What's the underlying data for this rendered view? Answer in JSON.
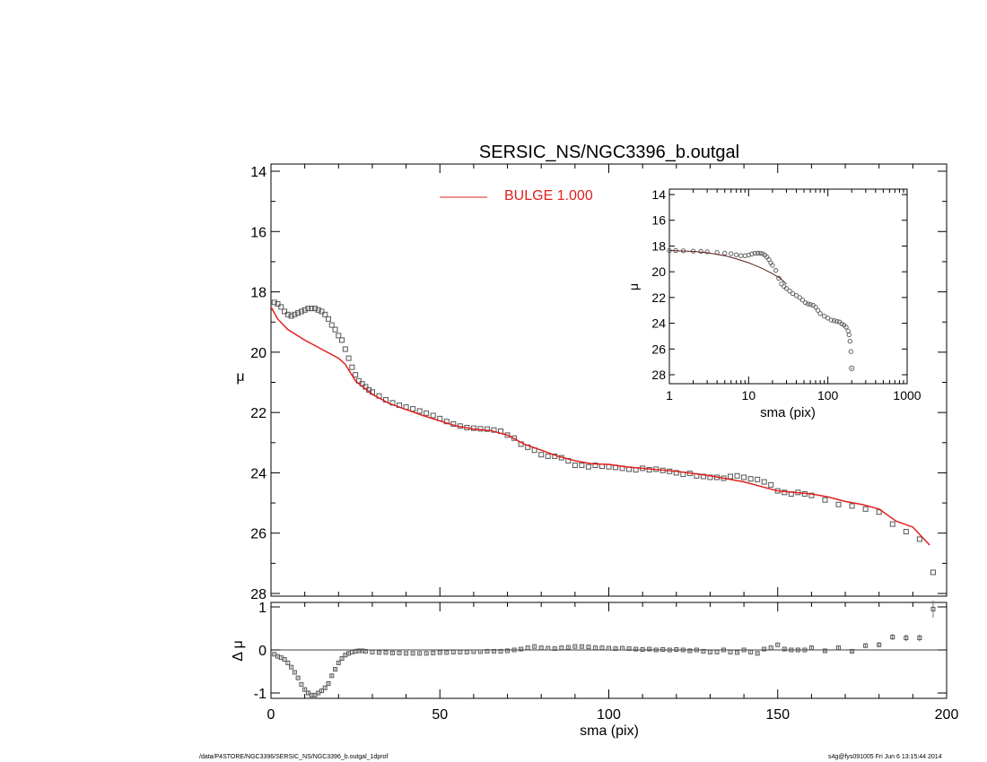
{
  "colors": {
    "model": "#e0201c",
    "points": "#555555",
    "axis": "#000000"
  },
  "footer": {
    "path": "/data/P4STORE/NGC3396/SERSIC_NS/NGC3396_b.outgal_1dprof",
    "stamp": "s4g@fys091005  Fri Jun  6 13:15:44 2014"
  },
  "chart_data": [
    {
      "id": "main",
      "type": "scatter",
      "title": "SERSIC_NS/NGC3396_b.outgal",
      "xlabel": "",
      "ylabel": "μ",
      "xlim": [
        0,
        200
      ],
      "ylim": [
        28,
        14
      ],
      "y_inverted": true,
      "yticks": [
        14,
        16,
        18,
        20,
        22,
        24,
        26,
        28
      ],
      "legend": {
        "placement": "top-center",
        "entries": [
          {
            "label": "BULGE  1.000",
            "color": "#e0201c"
          }
        ]
      },
      "series": [
        {
          "name": "data",
          "style": "open-square",
          "x": [
            1,
            2,
            3,
            4,
            5,
            6,
            7,
            8,
            9,
            10,
            11,
            12,
            13,
            14,
            15,
            16,
            17,
            18,
            19,
            20,
            21,
            22,
            23,
            24,
            25,
            26,
            27,
            28,
            29,
            30,
            32,
            34,
            36,
            38,
            40,
            42,
            44,
            46,
            48,
            50,
            52,
            54,
            56,
            58,
            60,
            62,
            64,
            66,
            68,
            70,
            72,
            74,
            76,
            78,
            80,
            82,
            84,
            86,
            88,
            90,
            92,
            94,
            96,
            98,
            100,
            102,
            104,
            106,
            108,
            110,
            112,
            114,
            116,
            118,
            120,
            122,
            124,
            126,
            128,
            130,
            132,
            134,
            136,
            138,
            140,
            142,
            144,
            146,
            148,
            150,
            152,
            154,
            156,
            158,
            160,
            164,
            168,
            172,
            176,
            180,
            184,
            188,
            192,
            196
          ],
          "y": [
            18.35,
            18.4,
            18.5,
            18.65,
            18.75,
            18.8,
            18.75,
            18.7,
            18.65,
            18.6,
            18.55,
            18.55,
            18.55,
            18.6,
            18.65,
            18.75,
            18.9,
            19.1,
            19.25,
            19.45,
            19.6,
            19.9,
            20.2,
            20.5,
            20.75,
            20.95,
            21.05,
            21.15,
            21.25,
            21.32,
            21.45,
            21.58,
            21.68,
            21.76,
            21.82,
            21.88,
            21.95,
            22.02,
            22.1,
            22.2,
            22.3,
            22.38,
            22.45,
            22.5,
            22.52,
            22.54,
            22.55,
            22.58,
            22.62,
            22.75,
            22.85,
            23.05,
            23.15,
            23.25,
            23.4,
            23.45,
            23.45,
            23.5,
            23.6,
            23.75,
            23.75,
            23.8,
            23.75,
            23.78,
            23.8,
            23.82,
            23.85,
            23.88,
            23.9,
            23.85,
            23.9,
            23.88,
            23.92,
            23.95,
            24.0,
            24.05,
            24.02,
            24.1,
            24.12,
            24.15,
            24.15,
            24.18,
            24.12,
            24.1,
            24.15,
            24.2,
            24.22,
            24.3,
            24.4,
            24.6,
            24.65,
            24.7,
            24.65,
            24.7,
            24.75,
            24.9,
            25.05,
            25.1,
            25.2,
            25.3,
            25.7,
            25.95,
            26.2,
            27.3
          ]
        },
        {
          "name": "BULGE  1.000",
          "style": "line",
          "x": [
            0,
            2,
            5,
            10,
            15,
            20,
            22,
            25,
            30,
            35,
            40,
            45,
            50,
            55,
            60,
            65,
            70,
            75,
            80,
            85,
            90,
            95,
            100,
            105,
            110,
            115,
            120,
            125,
            130,
            135,
            140,
            145,
            150,
            155,
            160,
            165,
            170,
            175,
            180,
            185,
            190,
            195
          ],
          "y": [
            18.5,
            18.9,
            19.25,
            19.6,
            19.9,
            20.2,
            20.4,
            20.95,
            21.4,
            21.7,
            21.9,
            22.1,
            22.28,
            22.45,
            22.55,
            22.6,
            22.75,
            23.05,
            23.25,
            23.45,
            23.6,
            23.7,
            23.72,
            23.8,
            23.85,
            23.9,
            23.95,
            24.02,
            24.1,
            24.2,
            24.3,
            24.45,
            24.6,
            24.65,
            24.7,
            24.8,
            24.95,
            25.05,
            25.2,
            25.6,
            25.8,
            26.4
          ]
        }
      ]
    },
    {
      "id": "inset",
      "type": "scatter",
      "title": "",
      "xlabel": "sma (pix)",
      "ylabel": "μ",
      "xscale": "log",
      "xlim": [
        1,
        1000
      ],
      "xticks": [
        1,
        10,
        100,
        1000
      ],
      "ylim": [
        28,
        14
      ],
      "y_inverted": true,
      "yticks": [
        14,
        16,
        18,
        20,
        22,
        24,
        26,
        28
      ],
      "series": [
        {
          "name": "data",
          "style": "open-circle",
          "x": [
            1,
            1.2,
            1.5,
            2,
            2.5,
            3,
            4,
            5,
            6,
            7,
            8,
            9,
            10,
            11,
            12,
            13,
            14,
            15,
            16,
            17,
            18,
            19,
            20,
            22,
            24,
            26,
            28,
            30,
            33,
            36,
            40,
            44,
            48,
            52,
            56,
            60,
            65,
            70,
            75,
            80,
            90,
            100,
            110,
            120,
            130,
            140,
            150,
            160,
            170,
            180,
            185,
            190,
            195
          ],
          "y": [
            18.35,
            18.35,
            18.37,
            18.4,
            18.42,
            18.45,
            18.5,
            18.55,
            18.6,
            18.68,
            18.75,
            18.75,
            18.7,
            18.62,
            18.57,
            18.55,
            18.56,
            18.6,
            18.7,
            18.85,
            19.05,
            19.3,
            19.5,
            19.9,
            20.5,
            20.95,
            21.15,
            21.3,
            21.5,
            21.7,
            21.85,
            22.0,
            22.2,
            22.4,
            22.5,
            22.55,
            22.6,
            22.75,
            23.0,
            23.25,
            23.45,
            23.6,
            23.75,
            23.8,
            23.85,
            23.9,
            24.05,
            24.15,
            24.3,
            24.6,
            24.9,
            25.4,
            26.2
          ]
        },
        {
          "name": "model",
          "style": "line",
          "x": [
            1,
            2,
            3,
            5,
            7,
            10,
            15,
            20,
            25,
            30
          ],
          "y": [
            18.35,
            18.42,
            18.52,
            18.75,
            19.0,
            19.3,
            19.75,
            20.15,
            20.5,
            20.95
          ]
        },
        {
          "name": "outlier",
          "style": "circle-dot",
          "x": [
            200
          ],
          "y": [
            27.5
          ]
        }
      ]
    },
    {
      "id": "residual",
      "type": "scatter",
      "title": "",
      "xlabel": "sma (pix)",
      "ylabel": "Δ μ",
      "xlim": [
        0,
        200
      ],
      "xticks": [
        0,
        50,
        100,
        150,
        200
      ],
      "ylim": [
        -1,
        1
      ],
      "yticks": [
        -1,
        0,
        1
      ],
      "zero_line": true,
      "series": [
        {
          "name": "residual",
          "style": "open-square-errorbar",
          "x": [
            1,
            2,
            3,
            4,
            5,
            6,
            7,
            8,
            9,
            10,
            11,
            12,
            13,
            14,
            15,
            16,
            17,
            18,
            19,
            20,
            21,
            22,
            23,
            24,
            25,
            26,
            27,
            28,
            30,
            32,
            34,
            36,
            38,
            40,
            42,
            44,
            46,
            48,
            50,
            52,
            54,
            56,
            58,
            60,
            62,
            64,
            66,
            68,
            70,
            72,
            74,
            76,
            78,
            80,
            82,
            84,
            86,
            88,
            90,
            92,
            94,
            96,
            98,
            100,
            102,
            104,
            106,
            108,
            110,
            112,
            114,
            116,
            118,
            120,
            122,
            124,
            126,
            128,
            130,
            132,
            134,
            136,
            138,
            140,
            142,
            144,
            146,
            148,
            150,
            152,
            154,
            156,
            158,
            160,
            164,
            168,
            172,
            176,
            180,
            184,
            188,
            192,
            196
          ],
          "y": [
            -0.1,
            -0.15,
            -0.18,
            -0.22,
            -0.3,
            -0.4,
            -0.52,
            -0.65,
            -0.8,
            -0.92,
            -1.0,
            -1.05,
            -1.05,
            -1.0,
            -0.95,
            -0.88,
            -0.78,
            -0.6,
            -0.45,
            -0.3,
            -0.2,
            -0.12,
            -0.08,
            -0.05,
            -0.03,
            -0.02,
            -0.02,
            -0.03,
            -0.05,
            -0.06,
            -0.06,
            -0.07,
            -0.07,
            -0.08,
            -0.08,
            -0.08,
            -0.08,
            -0.07,
            -0.06,
            -0.06,
            -0.05,
            -0.05,
            -0.05,
            -0.04,
            -0.04,
            -0.03,
            -0.03,
            -0.03,
            -0.02,
            0.0,
            0.02,
            0.05,
            0.08,
            0.05,
            0.04,
            0.03,
            0.05,
            0.06,
            0.08,
            0.08,
            0.07,
            0.05,
            0.05,
            0.04,
            0.03,
            0.04,
            0.03,
            0.02,
            0.01,
            0.02,
            0.0,
            0.01,
            0.0,
            0.01,
            0.0,
            -0.02,
            0.0,
            -0.03,
            -0.05,
            -0.05,
            0.0,
            -0.05,
            -0.06,
            0.0,
            -0.05,
            -0.08,
            0.02,
            0.05,
            0.12,
            0.02,
            0.0,
            0.0,
            0.0,
            0.05,
            -0.02,
            0.05,
            -0.03,
            0.1,
            0.12,
            0.3,
            0.28,
            0.28,
            0.95
          ],
          "err": [
            0.02,
            0.02,
            0.02,
            0.02,
            0.02,
            0.02,
            0.02,
            0.02,
            0.02,
            0.03,
            0.03,
            0.03,
            0.03,
            0.03,
            0.03,
            0.03,
            0.03,
            0.03,
            0.03,
            0.03,
            0.03,
            0.03,
            0.03,
            0.02,
            0.02,
            0.02,
            0.02,
            0.02,
            0.02,
            0.02,
            0.02,
            0.02,
            0.02,
            0.02,
            0.02,
            0.02,
            0.02,
            0.02,
            0.02,
            0.02,
            0.02,
            0.02,
            0.02,
            0.02,
            0.02,
            0.02,
            0.02,
            0.02,
            0.02,
            0.02,
            0.02,
            0.02,
            0.02,
            0.02,
            0.02,
            0.02,
            0.02,
            0.02,
            0.02,
            0.02,
            0.02,
            0.02,
            0.02,
            0.02,
            0.02,
            0.02,
            0.02,
            0.02,
            0.02,
            0.02,
            0.02,
            0.02,
            0.02,
            0.02,
            0.02,
            0.02,
            0.02,
            0.02,
            0.02,
            0.02,
            0.02,
            0.02,
            0.02,
            0.02,
            0.02,
            0.02,
            0.02,
            0.02,
            0.02,
            0.02,
            0.02,
            0.02,
            0.02,
            0.03,
            0.03,
            0.03,
            0.04,
            0.05,
            0.06,
            0.07,
            0.08,
            0.08,
            0.2
          ]
        }
      ]
    }
  ]
}
